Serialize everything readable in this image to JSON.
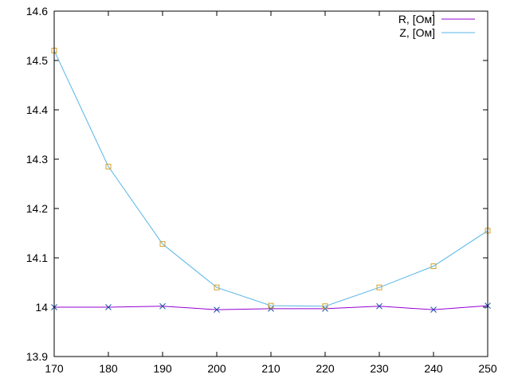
{
  "chart_data": {
    "type": "line",
    "xlim": [
      170,
      250
    ],
    "ylim": [
      13.9,
      14.6
    ],
    "grid": false,
    "legend_position": "top-right",
    "x_ticks": [
      "170",
      "180",
      "190",
      "200",
      "210",
      "220",
      "230",
      "240",
      "250"
    ],
    "y_ticks": [
      "13.9",
      "14",
      "14.1",
      "14.2",
      "14.3",
      "14.4",
      "14.5",
      "14.6"
    ],
    "x": [
      170,
      180,
      190,
      200,
      210,
      220,
      230,
      240,
      250
    ],
    "series": [
      {
        "name": "R, [Ом]",
        "line_color": "#9400d3",
        "marker": "x",
        "marker_color": "#1a4fa6",
        "values": [
          14.0,
          14.0,
          14.002,
          13.995,
          13.997,
          13.997,
          14.002,
          13.995,
          14.003
        ]
      },
      {
        "name": "Z, [Ом]",
        "line_color": "#56b4e9",
        "marker": "square",
        "marker_color": "#d4a02a",
        "values": [
          14.52,
          14.285,
          14.128,
          14.04,
          14.003,
          14.002,
          14.04,
          14.083,
          14.155
        ]
      }
    ]
  }
}
